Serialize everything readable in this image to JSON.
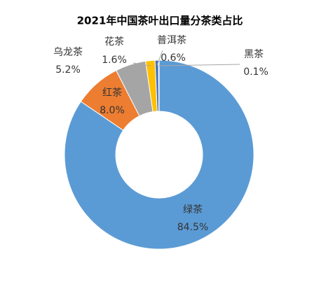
{
  "chart_data": {
    "type": "donut",
    "title": "2021年中国茶叶出口量分茶类占比",
    "categories": [
      "绿茶",
      "红茶",
      "乌龙茶",
      "花茶",
      "普洱茶",
      "黑茶"
    ],
    "values": [
      84.5,
      8.0,
      5.2,
      1.6,
      0.6,
      0.1
    ],
    "value_labels": [
      "84.5%",
      "8.0%",
      "5.2%",
      "1.6%",
      "0.6%",
      "0.1%"
    ],
    "colors": [
      "#5b9bd5",
      "#ed7d31",
      "#a5a5a5",
      "#ffc000",
      "#4472c4",
      "#70ad47"
    ]
  }
}
